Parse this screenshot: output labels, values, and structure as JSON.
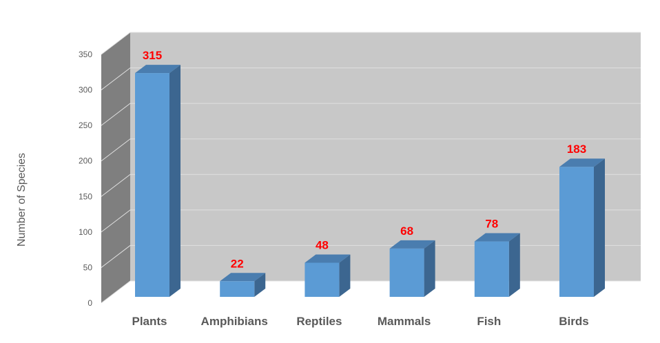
{
  "chart_data": {
    "type": "bar",
    "style": "3d-column",
    "title": "",
    "xlabel": "",
    "ylabel": "Number of Species",
    "categories": [
      "Plants",
      "Amphibians",
      "Reptiles",
      "Mammals",
      "Fish",
      "Birds"
    ],
    "series": [
      {
        "values": [
          315,
          22,
          48,
          68,
          78,
          183
        ]
      }
    ],
    "data_labels": [
      "315",
      "22",
      "48",
      "68",
      "78",
      "183"
    ],
    "ylim": [
      0,
      350
    ],
    "yticks": [
      0,
      50,
      100,
      150,
      200,
      250,
      300,
      350
    ],
    "grid": true,
    "legend": "none",
    "colors": {
      "bar_front": "#5B9BD5",
      "bar_side": "#3C6690",
      "bar_top": "#4A7DAF",
      "back_wall": "#C8C8C8",
      "side_wall": "#7F7F7F",
      "gridline": "#E0E0E0",
      "data_label": "#FF0000",
      "text": "#595959"
    }
  }
}
